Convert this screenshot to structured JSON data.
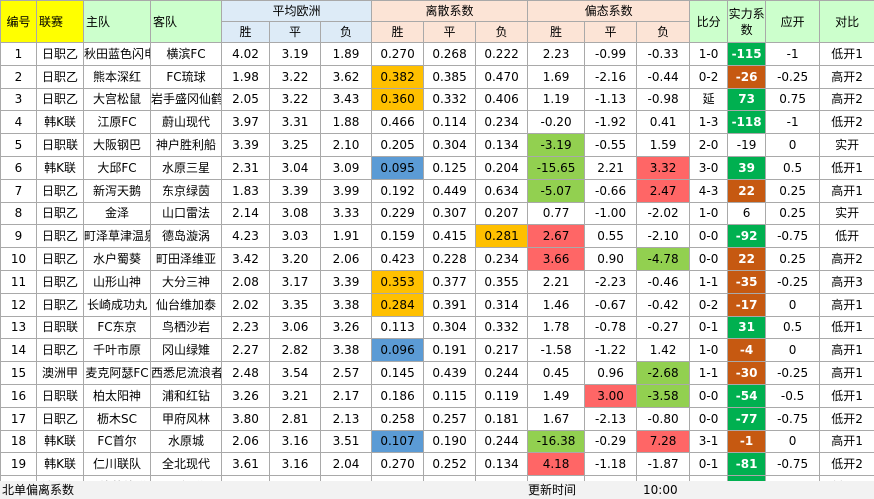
{
  "headers": {
    "num": "编号",
    "league": "联赛",
    "home": "主队",
    "away": "客队",
    "avg_odds": "平均欧洲",
    "dispersion": "离散系数",
    "skew": "偏态系数",
    "score": "比分",
    "strength": "实力系数",
    "handicap": "应开",
    "compare": "对比",
    "win": "胜",
    "draw": "平",
    "loss": "负"
  },
  "rows": [
    {
      "n": "1",
      "league": "日职乙",
      "home": "秋田蓝色闪电",
      "away": "横滨FC",
      "o": [
        "4.02",
        "3.19",
        "1.89"
      ],
      "d": [
        "0.270",
        "0.268",
        "0.222"
      ],
      "s": [
        "2.23",
        "-0.99",
        "-0.33"
      ],
      "score": "1-0",
      "str": "-115",
      "h": "-1",
      "c": "低开1",
      "dh": [
        null,
        null,
        null
      ],
      "sh": [
        null,
        null,
        null
      ],
      "sc": "green"
    },
    {
      "n": "2",
      "league": "日职乙",
      "home": "熊本深红",
      "away": "FC琉球",
      "o": [
        "1.98",
        "3.22",
        "3.62"
      ],
      "d": [
        "0.382",
        "0.385",
        "0.470"
      ],
      "s": [
        "1.69",
        "-2.16",
        "-0.44"
      ],
      "score": "0-2",
      "str": "-26",
      "h": "-0.25",
      "c": "高开2",
      "dh": [
        "orange",
        null,
        null
      ],
      "sh": [
        null,
        null,
        null
      ],
      "sc": "orange"
    },
    {
      "n": "3",
      "league": "日职乙",
      "home": "大宫松鼠",
      "away": "岩手盛冈仙鹤",
      "o": [
        "2.05",
        "3.22",
        "3.43"
      ],
      "d": [
        "0.360",
        "0.332",
        "0.406"
      ],
      "s": [
        "1.19",
        "-1.13",
        "-0.98"
      ],
      "score": "延",
      "str": "73",
      "h": "0.75",
      "c": "高开2",
      "dh": [
        "orange",
        null,
        null
      ],
      "sh": [
        null,
        null,
        null
      ],
      "sc": "green"
    },
    {
      "n": "4",
      "league": "韩K联",
      "home": "江原FC",
      "away": "蔚山现代",
      "o": [
        "3.97",
        "3.31",
        "1.88"
      ],
      "d": [
        "0.466",
        "0.114",
        "0.234"
      ],
      "s": [
        "-0.20",
        "-1.92",
        "0.41"
      ],
      "score": "1-3",
      "str": "-118",
      "h": "-1",
      "c": "低开2",
      "dh": [
        null,
        null,
        null
      ],
      "sh": [
        null,
        null,
        null
      ],
      "sc": "green"
    },
    {
      "n": "5",
      "league": "日职联",
      "home": "大阪钢巴",
      "away": "神户胜利船",
      "o": [
        "3.39",
        "3.25",
        "2.10"
      ],
      "d": [
        "0.205",
        "0.304",
        "0.134"
      ],
      "s": [
        "-3.19",
        "-0.55",
        "1.59"
      ],
      "score": "2-0",
      "str": "-19",
      "h": "0",
      "c": "实开",
      "dh": [
        null,
        null,
        null
      ],
      "sh": [
        "green",
        null,
        null
      ],
      "sc": ""
    },
    {
      "n": "6",
      "league": "韩K联",
      "home": "大邱FC",
      "away": "水原三星",
      "o": [
        "2.31",
        "3.04",
        "3.09"
      ],
      "d": [
        "0.095",
        "0.125",
        "0.204"
      ],
      "s": [
        "-15.65",
        "2.21",
        "3.32"
      ],
      "score": "3-0",
      "str": "39",
      "h": "0.5",
      "c": "低开1",
      "dh": [
        "blue",
        null,
        null
      ],
      "sh": [
        "green",
        null,
        "red"
      ],
      "sc": "green"
    },
    {
      "n": "7",
      "league": "日职乙",
      "home": "新泻天鹅",
      "away": "东京绿茵",
      "o": [
        "1.83",
        "3.39",
        "3.99"
      ],
      "d": [
        "0.192",
        "0.449",
        "0.634"
      ],
      "s": [
        "-5.07",
        "-0.66",
        "2.47"
      ],
      "score": "4-3",
      "str": "22",
      "h": "0.25",
      "c": "高开1",
      "dh": [
        null,
        null,
        null
      ],
      "sh": [
        "green",
        null,
        "red"
      ],
      "sc": "orange"
    },
    {
      "n": "8",
      "league": "日职乙",
      "home": "金泽",
      "away": "山口雷法",
      "o": [
        "2.14",
        "3.08",
        "3.33"
      ],
      "d": [
        "0.229",
        "0.307",
        "0.207"
      ],
      "s": [
        "0.77",
        "-1.00",
        "-2.02"
      ],
      "score": "1-0",
      "str": "6",
      "h": "0.25",
      "c": "实开",
      "dh": [
        null,
        null,
        null
      ],
      "sh": [
        null,
        null,
        null
      ],
      "sc": ""
    },
    {
      "n": "9",
      "league": "日职乙",
      "home": "町泽草津温泉",
      "away": "德岛漩涡",
      "o": [
        "4.23",
        "3.03",
        "1.91"
      ],
      "d": [
        "0.159",
        "0.415",
        "0.281"
      ],
      "s": [
        "2.67",
        "0.55",
        "-2.10"
      ],
      "score": "0-0",
      "str": "-92",
      "h": "-0.75",
      "c": "低开",
      "dh": [
        null,
        null,
        "orange"
      ],
      "sh": [
        "red",
        null,
        null
      ],
      "sc": "green"
    },
    {
      "n": "10",
      "league": "日职乙",
      "home": "水户蜀葵",
      "away": "町田泽维亚",
      "o": [
        "3.42",
        "3.20",
        "2.06"
      ],
      "d": [
        "0.423",
        "0.228",
        "0.234"
      ],
      "s": [
        "3.66",
        "0.90",
        "-4.78"
      ],
      "score": "0-0",
      "str": "22",
      "h": "0.25",
      "c": "高开2",
      "dh": [
        null,
        null,
        null
      ],
      "sh": [
        "red",
        null,
        "green"
      ],
      "sc": "orange"
    },
    {
      "n": "11",
      "league": "日职乙",
      "home": "山形山神",
      "away": "大分三神",
      "o": [
        "2.08",
        "3.17",
        "3.39"
      ],
      "d": [
        "0.353",
        "0.377",
        "0.355"
      ],
      "s": [
        "2.21",
        "-2.23",
        "-0.46"
      ],
      "score": "1-1",
      "str": "-35",
      "h": "-0.25",
      "c": "高开3",
      "dh": [
        "orange",
        null,
        null
      ],
      "sh": [
        null,
        null,
        null
      ],
      "sc": "orange"
    },
    {
      "n": "12",
      "league": "日职乙",
      "home": "长崎成功丸",
      "away": "仙台维加泰",
      "o": [
        "2.02",
        "3.35",
        "3.38"
      ],
      "d": [
        "0.284",
        "0.391",
        "0.314"
      ],
      "s": [
        "1.46",
        "-0.67",
        "-0.42"
      ],
      "score": "0-2",
      "str": "-17",
      "h": "0",
      "c": "高开1",
      "dh": [
        "orange",
        null,
        null
      ],
      "sh": [
        null,
        null,
        null
      ],
      "sc": "orange"
    },
    {
      "n": "13",
      "league": "日职联",
      "home": "FC东京",
      "away": "鸟栖沙岩",
      "o": [
        "2.23",
        "3.06",
        "3.26"
      ],
      "d": [
        "0.113",
        "0.304",
        "0.332"
      ],
      "s": [
        "1.78",
        "-0.78",
        "-0.27"
      ],
      "score": "0-1",
      "str": "31",
      "h": "0.5",
      "c": "低开1",
      "dh": [
        null,
        null,
        null
      ],
      "sh": [
        null,
        null,
        null
      ],
      "sc": "green"
    },
    {
      "n": "14",
      "league": "日职乙",
      "home": "千叶市原",
      "away": "冈山绿雉",
      "o": [
        "2.27",
        "2.82",
        "3.38"
      ],
      "d": [
        "0.096",
        "0.191",
        "0.217"
      ],
      "s": [
        "-1.58",
        "-1.22",
        "1.42"
      ],
      "score": "1-0",
      "str": "-4",
      "h": "0",
      "c": "高开1",
      "dh": [
        "blue",
        null,
        null
      ],
      "sh": [
        null,
        null,
        null
      ],
      "sc": "orange"
    },
    {
      "n": "15",
      "league": "澳洲甲",
      "home": "麦克阿瑟FC",
      "away": "西悉尼流浪者",
      "o": [
        "2.48",
        "3.54",
        "2.57"
      ],
      "d": [
        "0.145",
        "0.439",
        "0.244"
      ],
      "s": [
        "0.45",
        "0.96",
        "-2.68"
      ],
      "score": "1-1",
      "str": "-30",
      "h": "-0.25",
      "c": "高开1",
      "dh": [
        null,
        null,
        null
      ],
      "sh": [
        null,
        null,
        "green"
      ],
      "sc": "orange"
    },
    {
      "n": "16",
      "league": "日职联",
      "home": "柏太阳神",
      "away": "浦和红钻",
      "o": [
        "3.26",
        "3.21",
        "2.17"
      ],
      "d": [
        "0.186",
        "0.115",
        "0.119"
      ],
      "s": [
        "1.49",
        "3.00",
        "-3.58"
      ],
      "score": "0-0",
      "str": "-54",
      "h": "-0.5",
      "c": "低开1",
      "dh": [
        null,
        null,
        null
      ],
      "sh": [
        null,
        "red",
        "green"
      ],
      "sc": "green"
    },
    {
      "n": "17",
      "league": "日职乙",
      "home": "枥木SC",
      "away": "甲府风林",
      "o": [
        "3.80",
        "2.81",
        "2.13"
      ],
      "d": [
        "0.258",
        "0.257",
        "0.181"
      ],
      "s": [
        "1.67",
        "-2.13",
        "-0.80"
      ],
      "score": "0-0",
      "str": "-77",
      "h": "-0.75",
      "c": "低开2",
      "dh": [
        null,
        null,
        null
      ],
      "sh": [
        null,
        null,
        null
      ],
      "sc": "green"
    },
    {
      "n": "18",
      "league": "韩K联",
      "home": "FC首尔",
      "away": "水原城",
      "o": [
        "2.06",
        "3.16",
        "3.51"
      ],
      "d": [
        "0.107",
        "0.190",
        "0.244"
      ],
      "s": [
        "-16.38",
        "-0.29",
        "7.28"
      ],
      "score": "3-1",
      "str": "-1",
      "h": "0",
      "c": "高开1",
      "dh": [
        "blue",
        null,
        null
      ],
      "sh": [
        "green",
        null,
        "red"
      ],
      "sc": "orange"
    },
    {
      "n": "19",
      "league": "韩K联",
      "home": "仁川联队",
      "away": "全北现代",
      "o": [
        "3.61",
        "3.16",
        "2.04"
      ],
      "d": [
        "0.270",
        "0.252",
        "0.134"
      ],
      "s": [
        "4.18",
        "-1.18",
        "-1.87"
      ],
      "score": "0-1",
      "str": "-81",
      "h": "-0.75",
      "c": "低开2",
      "dh": [
        null,
        null,
        null
      ],
      "sh": [
        "red",
        null,
        null
      ],
      "sc": "green"
    },
    {
      "n": "20",
      "league": "澳洲甲",
      "home": "阿德莱德联",
      "away": "西部联",
      "o": [
        "2.39",
        "3.55",
        "2.67"
      ],
      "d": [
        "0.211",
        "0.361",
        "0.263"
      ],
      "s": [
        "-0.73",
        "0.95",
        "-1.24"
      ],
      "score": "2-1",
      "str": "46",
      "h": "0.5",
      "c": "低开1",
      "dh": [
        null,
        null,
        null
      ],
      "sh": [
        null,
        null,
        null
      ],
      "sc": "green"
    }
  ],
  "footer": {
    "title": "北单偏离系数",
    "update_label": "更新时间",
    "time": "10:00"
  }
}
